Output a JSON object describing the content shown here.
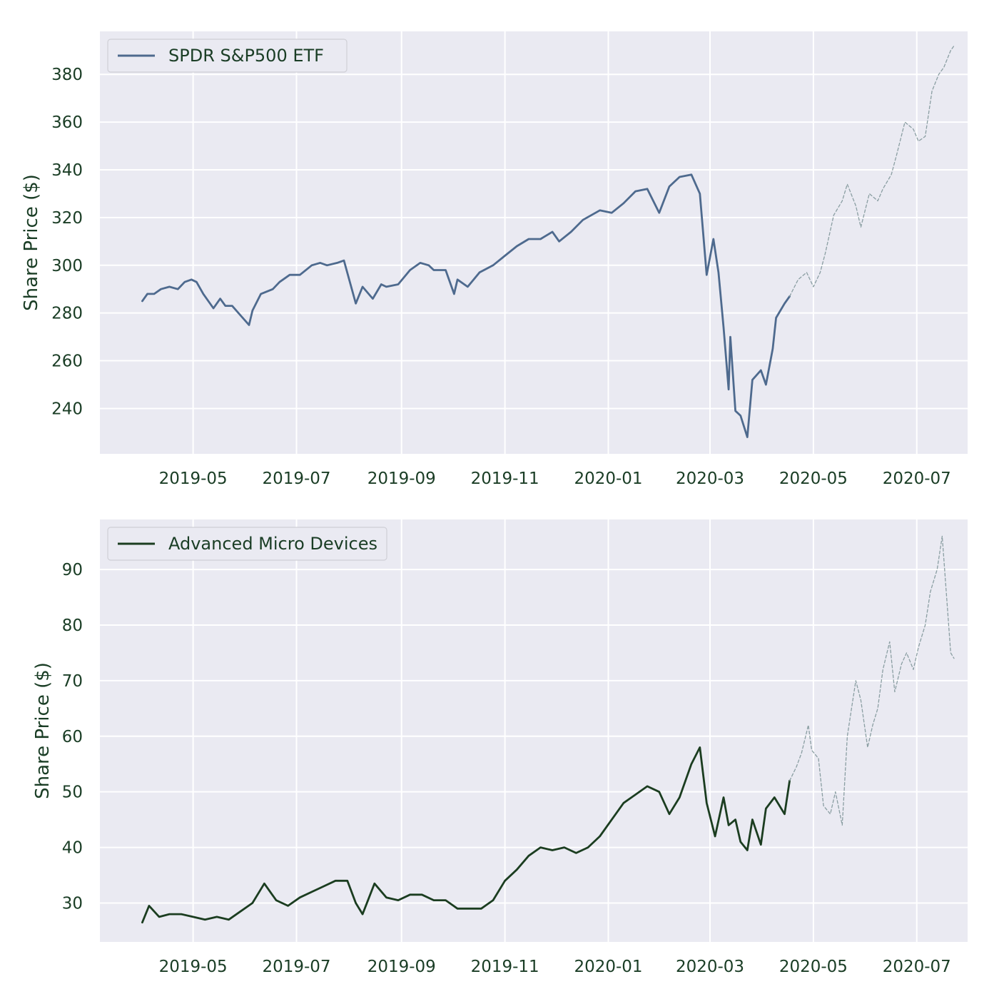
{
  "chart_data": [
    {
      "type": "line",
      "ylabel": "Share Price ($)",
      "xlabel": "",
      "grid": true,
      "legend_position": "top-left",
      "x_range": [
        "2019-03-07",
        "2020-07-31"
      ],
      "ylim": [
        221,
        398
      ],
      "x_ticks": [
        "2019-05",
        "2019-07",
        "2019-09",
        "2019-11",
        "2020-01",
        "2020-03",
        "2020-05",
        "2020-07"
      ],
      "y_ticks": [
        240,
        260,
        280,
        300,
        320,
        340,
        360,
        380
      ],
      "series": [
        {
          "name": "SPDR S&P500 ETF",
          "color": "#4e6a8e",
          "style": "solid",
          "x": [
            "2019-04-01",
            "2019-04-04",
            "2019-04-08",
            "2019-04-12",
            "2019-04-17",
            "2019-04-22",
            "2019-04-26",
            "2019-04-30",
            "2019-05-03",
            "2019-05-07",
            "2019-05-13",
            "2019-05-17",
            "2019-05-20",
            "2019-05-24",
            "2019-05-29",
            "2019-06-03",
            "2019-06-05",
            "2019-06-10",
            "2019-06-17",
            "2019-06-21",
            "2019-06-27",
            "2019-07-03",
            "2019-07-10",
            "2019-07-15",
            "2019-07-19",
            "2019-07-25",
            "2019-07-29",
            "2019-08-05",
            "2019-08-09",
            "2019-08-15",
            "2019-08-20",
            "2019-08-23",
            "2019-08-30",
            "2019-09-06",
            "2019-09-12",
            "2019-09-17",
            "2019-09-20",
            "2019-09-27",
            "2019-10-02",
            "2019-10-04",
            "2019-10-10",
            "2019-10-17",
            "2019-10-25",
            "2019-11-01",
            "2019-11-08",
            "2019-11-15",
            "2019-11-22",
            "2019-11-29",
            "2019-12-03",
            "2019-12-10",
            "2019-12-17",
            "2019-12-27",
            "2020-01-03",
            "2020-01-10",
            "2020-01-17",
            "2020-01-24",
            "2020-01-31",
            "2020-02-06",
            "2020-02-12",
            "2020-02-19",
            "2020-02-24",
            "2020-02-28",
            "2020-03-03",
            "2020-03-06",
            "2020-03-09",
            "2020-03-12",
            "2020-03-13",
            "2020-03-16",
            "2020-03-19",
            "2020-03-23",
            "2020-03-26",
            "2020-03-31",
            "2020-04-03",
            "2020-04-07",
            "2020-04-09",
            "2020-04-14",
            "2020-04-17"
          ],
          "values": [
            285,
            288,
            288,
            290,
            291,
            290,
            293,
            294,
            293,
            288,
            282,
            286,
            283,
            283,
            279,
            275,
            281,
            288,
            290,
            293,
            296,
            296,
            300,
            301,
            300,
            301,
            302,
            284,
            291,
            286,
            292,
            291,
            292,
            298,
            301,
            300,
            298,
            298,
            288,
            294,
            291,
            297,
            300,
            304,
            308,
            311,
            311,
            314,
            310,
            314,
            319,
            323,
            322,
            326,
            331,
            332,
            322,
            333,
            337,
            338,
            330,
            296,
            311,
            297,
            274,
            248,
            270,
            239,
            237,
            228,
            252,
            256,
            250,
            265,
            278,
            284,
            287
          ],
          "y_unit": "$"
        },
        {
          "name": "",
          "color": "#8a9ea2",
          "style": "dashed",
          "x": [
            "2020-04-17",
            "2020-04-22",
            "2020-04-27",
            "2020-05-01",
            "2020-05-05",
            "2020-05-08",
            "2020-05-13",
            "2020-05-18",
            "2020-05-21",
            "2020-05-26",
            "2020-05-29",
            "2020-06-03",
            "2020-06-08",
            "2020-06-11",
            "2020-06-16",
            "2020-06-19",
            "2020-06-24",
            "2020-06-29",
            "2020-07-02",
            "2020-07-06",
            "2020-07-10",
            "2020-07-14",
            "2020-07-17",
            "2020-07-21",
            "2020-07-23"
          ],
          "values": [
            287,
            294,
            297,
            291,
            297,
            305,
            321,
            327,
            334,
            325,
            316,
            330,
            327,
            332,
            338,
            346,
            360,
            357,
            352,
            354,
            373,
            380,
            383,
            390,
            392
          ],
          "y_unit": "$"
        }
      ]
    },
    {
      "type": "line",
      "ylabel": "Share Price ($)",
      "xlabel": "",
      "grid": true,
      "legend_position": "top-left",
      "x_range": [
        "2019-03-07",
        "2020-07-31"
      ],
      "ylim": [
        23,
        99
      ],
      "x_ticks": [
        "2019-05",
        "2019-07",
        "2019-09",
        "2019-11",
        "2020-01",
        "2020-03",
        "2020-05",
        "2020-07"
      ],
      "y_ticks": [
        30,
        40,
        50,
        60,
        70,
        80,
        90
      ],
      "series": [
        {
          "name": "Advanced Micro Devices",
          "color": "#1b3d20",
          "style": "solid",
          "x": [
            "2019-04-01",
            "2019-04-05",
            "2019-04-11",
            "2019-04-17",
            "2019-04-24",
            "2019-05-01",
            "2019-05-08",
            "2019-05-15",
            "2019-05-22",
            "2019-05-29",
            "2019-06-05",
            "2019-06-12",
            "2019-06-19",
            "2019-06-26",
            "2019-07-03",
            "2019-07-10",
            "2019-07-17",
            "2019-07-24",
            "2019-07-31",
            "2019-08-05",
            "2019-08-09",
            "2019-08-16",
            "2019-08-23",
            "2019-08-30",
            "2019-09-06",
            "2019-09-13",
            "2019-09-20",
            "2019-09-27",
            "2019-10-04",
            "2019-10-11",
            "2019-10-18",
            "2019-10-25",
            "2019-11-01",
            "2019-11-08",
            "2019-11-15",
            "2019-11-22",
            "2019-11-29",
            "2019-12-06",
            "2019-12-13",
            "2019-12-20",
            "2019-12-27",
            "2020-01-03",
            "2020-01-10",
            "2020-01-17",
            "2020-01-24",
            "2020-01-31",
            "2020-02-06",
            "2020-02-12",
            "2020-02-19",
            "2020-02-24",
            "2020-02-28",
            "2020-03-04",
            "2020-03-09",
            "2020-03-12",
            "2020-03-16",
            "2020-03-19",
            "2020-03-23",
            "2020-03-26",
            "2020-03-31",
            "2020-04-03",
            "2020-04-08",
            "2020-04-14",
            "2020-04-17"
          ],
          "values": [
            26.5,
            29.5,
            27.5,
            28,
            28,
            27.5,
            27,
            27.5,
            27,
            28.5,
            30,
            33.5,
            30.5,
            29.5,
            31,
            32,
            33,
            34,
            34,
            30,
            28,
            33.5,
            31,
            30.5,
            31.5,
            31.5,
            30.5,
            30.5,
            29,
            29,
            29,
            30.5,
            34,
            36,
            38.5,
            40,
            39.5,
            40,
            39,
            40,
            42,
            45,
            48,
            49.5,
            51,
            50,
            46,
            49,
            55,
            58,
            48,
            42,
            49,
            44,
            45,
            41,
            39.5,
            45,
            40.5,
            47,
            49,
            46,
            52
          ],
          "y_unit": "$"
        },
        {
          "name": "",
          "color": "#8a9ea2",
          "style": "dashed",
          "x": [
            "2020-04-17",
            "2020-04-21",
            "2020-04-24",
            "2020-04-28",
            "2020-04-30",
            "2020-05-04",
            "2020-05-07",
            "2020-05-11",
            "2020-05-14",
            "2020-05-18",
            "2020-05-21",
            "2020-05-26",
            "2020-05-29",
            "2020-06-02",
            "2020-06-05",
            "2020-06-08",
            "2020-06-11",
            "2020-06-15",
            "2020-06-18",
            "2020-06-22",
            "2020-06-25",
            "2020-06-29",
            "2020-07-02",
            "2020-07-06",
            "2020-07-09",
            "2020-07-13",
            "2020-07-16",
            "2020-07-21",
            "2020-07-23"
          ],
          "values": [
            52,
            54.5,
            57,
            62,
            57.5,
            56,
            47.5,
            46,
            50,
            44,
            60,
            70,
            66.5,
            58,
            62,
            65,
            72,
            77,
            68,
            73,
            75,
            72,
            76,
            80,
            86,
            90,
            96,
            75,
            74
          ],
          "y_unit": "$"
        }
      ]
    }
  ]
}
